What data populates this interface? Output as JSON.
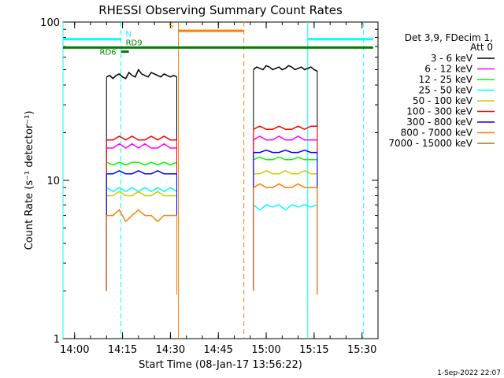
{
  "chart_data": {
    "type": "line",
    "title": "RHESSI Observing Summary Count Rates",
    "xlabel": "Start Time (08-Jan-17 13:56:22)",
    "ylabel": "Count Rate (s⁻¹ detector⁻¹)",
    "yscale": "log",
    "xlim": [
      "13:56:22",
      "15:35:00"
    ],
    "ylim": [
      1,
      100
    ],
    "x_ticks": [
      "14:00",
      "14:15",
      "14:30",
      "14:45",
      "15:00",
      "15:15",
      "15:30"
    ],
    "y_ticks": [
      "1",
      "10",
      "100"
    ],
    "legend": {
      "position": "right",
      "header": [
        "Det 3,9, FDecim 1,",
        "Att 0"
      ]
    },
    "series": [
      {
        "name": "3 - 6 keV",
        "color": "#000000",
        "segments": [
          {
            "x": [
              "14:10:00",
              "14:11:00",
              "14:12:00",
              "14:13:00",
              "14:14:00",
              "14:15:00",
              "14:16:00",
              "14:17:00",
              "14:18:00",
              "14:19:00",
              "14:20:00",
              "14:21:00",
              "14:22:00",
              "14:23:00",
              "14:24:00",
              "14:25:00",
              "14:26:00",
              "14:27:00",
              "14:28:00",
              "14:29:00",
              "14:30:00",
              "14:31:00",
              "14:32:00"
            ],
            "y": [
              45,
              46,
              44,
              46,
              47,
              45,
              44,
              48,
              46,
              45,
              50,
              47,
              46,
              45,
              48,
              47,
              46,
              45,
              47,
              46,
              45,
              46,
              45
            ]
          },
          {
            "x": [
              "14:56:00",
              "14:57:00",
              "14:58:00",
              "14:59:00",
              "15:00:00",
              "15:01:00",
              "15:02:00",
              "15:03:00",
              "15:04:00",
              "15:05:00",
              "15:06:00",
              "15:07:00",
              "15:08:00",
              "15:09:00",
              "15:10:00",
              "15:11:00",
              "15:12:00",
              "15:13:00",
              "15:14:00",
              "15:15:00",
              "15:16:00"
            ],
            "y": [
              50,
              52,
              51,
              50,
              53,
              52,
              50,
              51,
              52,
              50,
              51,
              53,
              52,
              50,
              51,
              52,
              50,
              51,
              52,
              50,
              49
            ]
          }
        ]
      },
      {
        "name": "6 - 12 keV",
        "color": "#ff00ff",
        "segments": [
          {
            "x": [
              "14:10:00",
              "14:12:00",
              "14:14:00",
              "14:16:00",
              "14:18:00",
              "14:20:00",
              "14:22:00",
              "14:24:00",
              "14:26:00",
              "14:28:00",
              "14:30:00",
              "14:32:00"
            ],
            "y": [
              16,
              16,
              17,
              16,
              17,
              16,
              17,
              16,
              16,
              17,
              16,
              16
            ]
          },
          {
            "x": [
              "14:56:00",
              "14:58:00",
              "15:00:00",
              "15:02:00",
              "15:04:00",
              "15:06:00",
              "15:08:00",
              "15:10:00",
              "15:12:00",
              "15:14:00",
              "15:16:00"
            ],
            "y": [
              18,
              19,
              18,
              18,
              19,
              18,
              18,
              19,
              18,
              18,
              18
            ]
          }
        ]
      },
      {
        "name": "12 - 25 keV",
        "color": "#00ff00",
        "segments": [
          {
            "x": [
              "14:10:00",
              "14:12:00",
              "14:14:00",
              "14:16:00",
              "14:18:00",
              "14:20:00",
              "14:22:00",
              "14:24:00",
              "14:26:00",
              "14:28:00",
              "14:30:00",
              "14:32:00"
            ],
            "y": [
              13,
              12.5,
              13,
              12.5,
              13,
              13,
              12.5,
              13,
              12.5,
              13,
              12.5,
              13
            ]
          },
          {
            "x": [
              "14:56:00",
              "14:58:00",
              "15:00:00",
              "15:02:00",
              "15:04:00",
              "15:06:00",
              "15:08:00",
              "15:10:00",
              "15:12:00",
              "15:14:00",
              "15:16:00"
            ],
            "y": [
              13.5,
              14,
              13.5,
              13.5,
              14,
              13.5,
              13.5,
              14,
              13.5,
              13.5,
              13.5
            ]
          }
        ]
      },
      {
        "name": "25 - 50 keV",
        "color": "#00ffff",
        "segments": [
          {
            "x": [
              "14:10:00",
              "14:12:00",
              "14:14:00",
              "14:16:00",
              "14:18:00",
              "14:20:00",
              "14:22:00",
              "14:24:00",
              "14:26:00",
              "14:28:00",
              "14:30:00",
              "14:32:00"
            ],
            "y": [
              9,
              8.5,
              9,
              8.5,
              9,
              8.5,
              9,
              8.5,
              9,
              8.5,
              9,
              8.5
            ]
          },
          {
            "x": [
              "14:56:00",
              "14:58:00",
              "15:00:00",
              "15:02:00",
              "15:04:00",
              "15:06:00",
              "15:08:00",
              "15:10:00",
              "15:12:00",
              "15:14:00",
              "15:16:00"
            ],
            "y": [
              7,
              6.5,
              7,
              6.8,
              7,
              6.5,
              7,
              6.8,
              7,
              6.8,
              7
            ]
          }
        ]
      },
      {
        "name": "50 - 100 keV",
        "color": "#cccc00",
        "segments": [
          {
            "x": [
              "14:10:00",
              "14:12:00",
              "14:14:00",
              "14:16:00",
              "14:18:00",
              "14:20:00",
              "14:22:00",
              "14:24:00",
              "14:26:00",
              "14:28:00",
              "14:30:00",
              "14:32:00"
            ],
            "y": [
              8,
              8,
              8.5,
              8,
              8,
              8.5,
              8,
              8,
              8.5,
              8,
              8,
              8
            ]
          },
          {
            "x": [
              "14:56:00",
              "14:58:00",
              "15:00:00",
              "15:02:00",
              "15:04:00",
              "15:06:00",
              "15:08:00",
              "15:10:00",
              "15:12:00",
              "15:14:00",
              "15:16:00"
            ],
            "y": [
              11,
              11,
              11.5,
              11,
              11,
              11.5,
              11,
              11,
              11.5,
              11,
              11
            ]
          }
        ]
      },
      {
        "name": "100 - 300 keV",
        "color": "#ff0000",
        "segments": [
          {
            "x": [
              "14:10:00",
              "14:12:00",
              "14:14:00",
              "14:16:00",
              "14:18:00",
              "14:20:00",
              "14:22:00",
              "14:24:00",
              "14:26:00",
              "14:28:00",
              "14:30:00",
              "14:32:00"
            ],
            "y": [
              18,
              18,
              19,
              18,
              19,
              18,
              18,
              19,
              18,
              19,
              18,
              18
            ]
          },
          {
            "x": [
              "14:56:00",
              "14:58:00",
              "15:00:00",
              "15:02:00",
              "15:04:00",
              "15:06:00",
              "15:08:00",
              "15:10:00",
              "15:12:00",
              "15:14:00",
              "15:16:00"
            ],
            "y": [
              21,
              22,
              21,
              21,
              22,
              21,
              21,
              22,
              21,
              22,
              22
            ]
          }
        ]
      },
      {
        "name": "300 - 800 keV",
        "color": "#0000ff",
        "segments": [
          {
            "x": [
              "14:10:00",
              "14:12:00",
              "14:14:00",
              "14:16:00",
              "14:18:00",
              "14:20:00",
              "14:22:00",
              "14:24:00",
              "14:26:00",
              "14:28:00",
              "14:30:00",
              "14:32:00"
            ],
            "y": [
              11,
              11,
              11.5,
              11,
              11,
              11.5,
              11,
              11,
              11.5,
              11,
              11,
              11
            ]
          },
          {
            "x": [
              "14:56:00",
              "14:58:00",
              "15:00:00",
              "15:02:00",
              "15:04:00",
              "15:06:00",
              "15:08:00",
              "15:10:00",
              "15:12:00",
              "15:14:00",
              "15:16:00"
            ],
            "y": [
              15,
              15,
              15.5,
              15,
              15,
              15.5,
              15,
              15,
              15.5,
              15,
              15
            ]
          }
        ]
      },
      {
        "name": "800 - 7000 keV",
        "color": "#ff8000",
        "segments": [
          {
            "x": [
              "14:10:00",
              "14:12:00",
              "14:14:00",
              "14:16:00",
              "14:18:00",
              "14:20:00",
              "14:22:00",
              "14:24:00",
              "14:26:00",
              "14:28:00",
              "14:30:00",
              "14:32:00"
            ],
            "y": [
              6,
              6,
              6.5,
              5.5,
              6,
              6.5,
              6,
              6,
              5.5,
              6,
              6,
              6
            ]
          },
          {
            "x": [
              "14:56:00",
              "14:58:00",
              "15:00:00",
              "15:02:00",
              "15:04:00",
              "15:06:00",
              "15:08:00",
              "15:10:00",
              "15:12:00",
              "15:14:00",
              "15:16:00"
            ],
            "y": [
              9,
              9.5,
              9,
              9,
              9.5,
              9,
              9,
              9.5,
              9,
              9,
              9
            ]
          }
        ]
      },
      {
        "name": "7000 - 15000 keV",
        "color": "#a08000",
        "segments": []
      }
    ],
    "vertical_markers": [
      {
        "x": "13:56:22",
        "color": "#00ffff",
        "style": "solid"
      },
      {
        "x": "14:14:30",
        "color": "#00ffff",
        "style": "dashed"
      },
      {
        "x": "14:32:30",
        "color": "#ff8000",
        "style": "solid"
      },
      {
        "x": "14:53:00",
        "color": "#ff8000",
        "style": "dashed"
      },
      {
        "x": "15:13:00",
        "color": "#00ffff",
        "style": "solid"
      },
      {
        "x": "15:30:30",
        "color": "#00ffff",
        "style": "dashed"
      }
    ],
    "flag_bars": [
      {
        "label": "N",
        "color": "#00ffff",
        "y": 78,
        "ranges": [
          [
            "13:56:22",
            "14:14:30"
          ],
          [
            "15:13:00",
            "15:33:30"
          ]
        ]
      },
      {
        "label": "S",
        "color": "#ff8000",
        "y": 88,
        "ranges": [
          [
            "14:32:30",
            "14:53:00"
          ]
        ]
      },
      {
        "label": "RD6",
        "color": "#008000",
        "y": 65,
        "ranges": [
          [
            "14:14:30",
            "14:17:00"
          ]
        ]
      },
      {
        "label": "RD9",
        "color": "#008000",
        "y": 69,
        "ranges": [
          [
            "13:56:22",
            "15:33:30"
          ]
        ]
      }
    ],
    "footer_date": "1-Sep-2022 22:07"
  }
}
